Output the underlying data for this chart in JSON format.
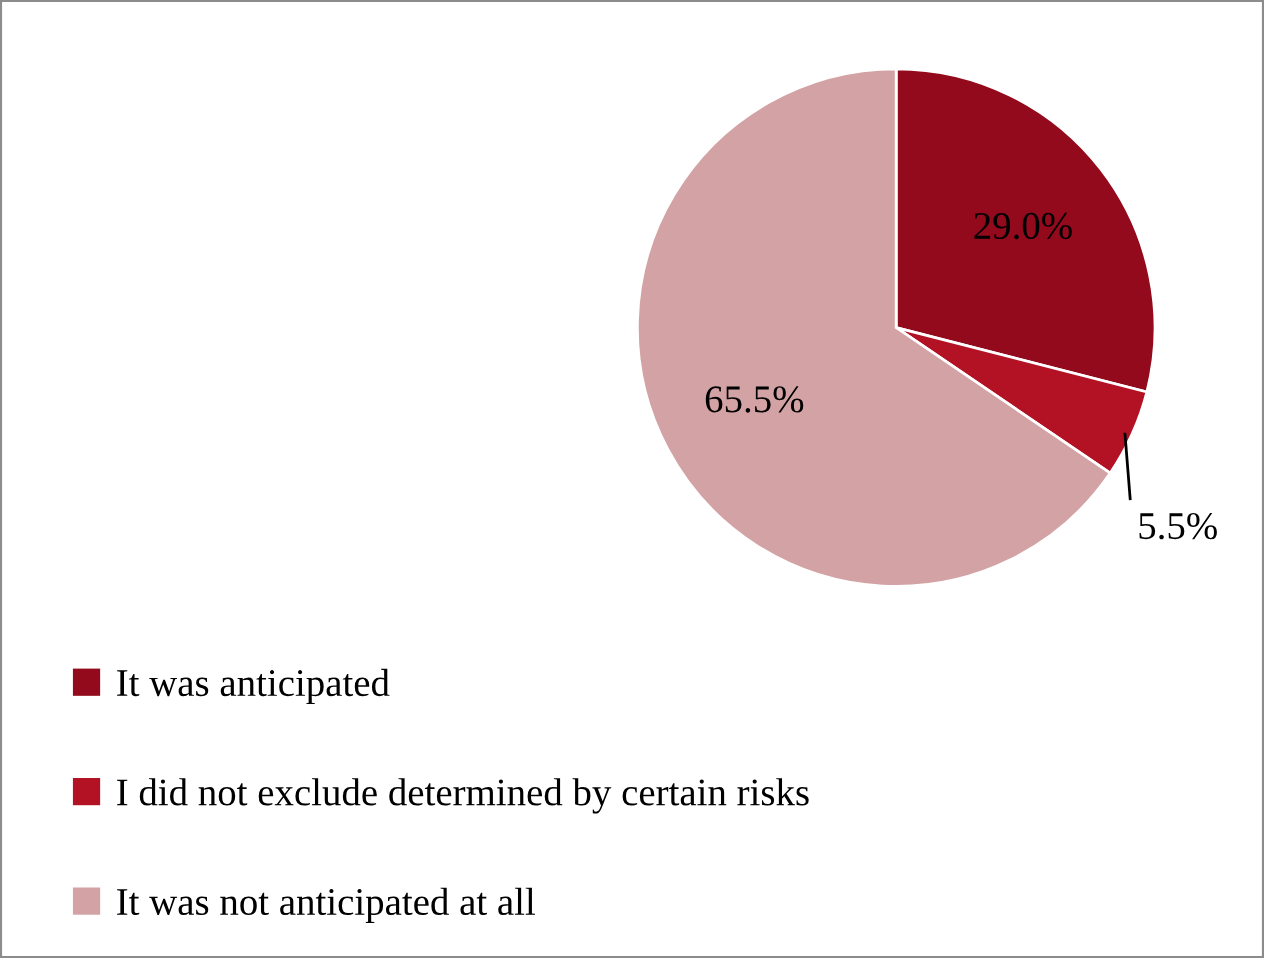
{
  "chart_data": {
    "type": "pie",
    "categories": [
      "It was anticipated",
      "I did not exclude determined by certain risks",
      "It was not anticipated at all"
    ],
    "values": [
      29.0,
      5.5,
      65.5
    ],
    "value_labels": [
      "29.0%",
      "5.5%",
      "65.5%"
    ],
    "colors": [
      "#920a1c",
      "#b31225",
      "#d3a2a4"
    ],
    "legend": "bottom left"
  }
}
